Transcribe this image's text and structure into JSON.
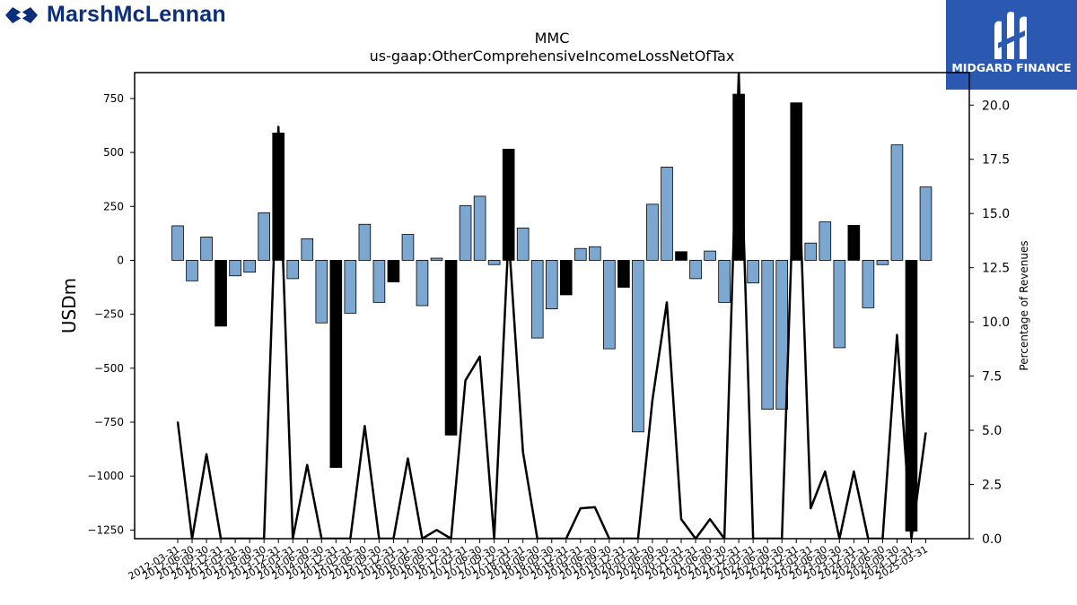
{
  "brand": {
    "left_logo_text": "MarshMcLennan",
    "right_logo_text": "MIDGARD FINANCE"
  },
  "chart_data": {
    "type": "bar",
    "title": "MMC",
    "subtitle": "us-gaap:OtherComprehensiveIncomeLossNetOfTax",
    "ylabel": "USDm",
    "y2label": "Percentage of Revenues",
    "ylim": [
      -1290,
      870
    ],
    "y2lim": [
      0,
      21.5
    ],
    "y_ticks": [
      -1250,
      -1000,
      -750,
      -500,
      -250,
      0,
      250,
      500,
      750
    ],
    "y_tick_labels": [
      "−1250",
      "−1000",
      "−750",
      "−500",
      "−250",
      "0",
      "250",
      "500",
      "750"
    ],
    "y2_ticks": [
      0,
      2.5,
      5,
      7.5,
      10,
      12.5,
      15,
      17.5,
      20
    ],
    "y2_tick_labels": [
      "0.0",
      "2.5",
      "5.0",
      "7.5",
      "10.0",
      "12.5",
      "15.0",
      "17.5",
      "20.0"
    ],
    "colors": {
      "quarter_bar": "#7ba7d0",
      "annual_bar": "#000000",
      "line": "#000000"
    },
    "categories": [
      "2012-03-31",
      "2012-06-30",
      "2012-09-30",
      "2012-12-31",
      "2013-03-31",
      "2013-06-30",
      "2013-09-30",
      "2013-12-31",
      "2014-03-31",
      "2014-06-30",
      "2014-09-30",
      "2014-12-31",
      "2015-03-31",
      "2015-06-30",
      "2015-09-30",
      "2015-12-31",
      "2016-03-31",
      "2016-06-30",
      "2016-09-30",
      "2016-12-31",
      "2017-03-31",
      "2017-06-30",
      "2017-09-30",
      "2017-12-31",
      "2018-03-31",
      "2018-06-30",
      "2018-09-30",
      "2018-12-31",
      "2019-03-31",
      "2019-06-30",
      "2019-09-30",
      "2019-12-31",
      "2020-03-31",
      "2020-06-30",
      "2020-09-30",
      "2020-12-31",
      "2021-03-31",
      "2021-06-30",
      "2021-09-30",
      "2021-12-31",
      "2022-03-31",
      "2022-06-30",
      "2022-09-30",
      "2022-12-31",
      "2023-03-31",
      "2023-06-30",
      "2023-09-30",
      "2023-12-31",
      "2024-03-31",
      "2024-06-30",
      "2024-09-30",
      "2024-12-31",
      "2025-03-31"
    ],
    "x_tick_labels": [
      "2012-03-31",
      "2012-06-30",
      "2012-09-30",
      "2012-12-31",
      "2013-03-31",
      "2013-06-30",
      "2013-09-30",
      "2013-12-31",
      "2014-03-31",
      "2014-06-30",
      "2014-09-30",
      "2014-12-31",
      "2015-03-31",
      "2015-06-30",
      "2015-09-30",
      "2015-12-31",
      "2016-03-31",
      "2016-06-30",
      "2016-09-30",
      "2016-12-31",
      "2017-03-31",
      "2017-06-30",
      "2017-09-30",
      "2017-12-31",
      "2018-03-31",
      "2018-06-30",
      "2018-09-30",
      "2018-12-31",
      "2019-03-31",
      "2019-06-30",
      "2019-09-30",
      "2019-12-31",
      "2020-03-31",
      "2020-06-30",
      "2020-09-30",
      "2020-12-31",
      "2021-03-31",
      "2021-06-30",
      "2021-09-30",
      "2021-12-31",
      "2022-03-31",
      "2022-06-30",
      "2022-09-30",
      "2022-12-31",
      "2023-03-31",
      "2023-06-30",
      "2023-09-30",
      "2023-12-31",
      "2024-03-31",
      "2024-06-30",
      "2024-09-30",
      "2024-12-31",
      "2025-03-31"
    ],
    "values": [
      160,
      -95,
      108,
      -305,
      -72,
      -55,
      220,
      590,
      -85,
      100,
      -290,
      -960,
      -245,
      167,
      -195,
      -100,
      120,
      -210,
      10,
      -810,
      253,
      297,
      -20,
      515,
      150,
      -360,
      -225,
      -160,
      55,
      63,
      -410,
      -125,
      -795,
      260,
      432,
      40,
      -85,
      43,
      -195,
      770,
      -105,
      -690,
      -690,
      730,
      80,
      178,
      -405,
      162,
      -220,
      -20,
      535,
      -1255,
      340
    ],
    "bar_type": [
      "q",
      "q",
      "q",
      "a",
      "q",
      "q",
      "q",
      "a",
      "q",
      "q",
      "q",
      "a",
      "q",
      "q",
      "q",
      "a",
      "q",
      "q",
      "q",
      "a",
      "q",
      "q",
      "q",
      "a",
      "q",
      "q",
      "q",
      "a",
      "q",
      "q",
      "q",
      "a",
      "q",
      "q",
      "q",
      "a",
      "q",
      "q",
      "q",
      "a",
      "q",
      "q",
      "q",
      "a",
      "q",
      "q",
      "q",
      "a",
      "q",
      "q",
      "q",
      "a",
      "q"
    ],
    "pct_of_revenues": [
      5.4,
      0,
      3.9,
      0,
      0,
      0,
      0,
      19.0,
      0,
      3.4,
      0,
      0,
      0,
      5.2,
      0,
      0,
      3.7,
      0,
      0.4,
      0,
      7.3,
      8.4,
      0,
      14.0,
      4.0,
      0,
      0,
      0,
      1.4,
      1.45,
      0,
      0,
      0,
      6.4,
      10.9,
      0.9,
      0,
      0.9,
      0,
      21.5,
      0,
      0,
      0,
      20.0,
      1.4,
      3.1,
      0,
      3.1,
      0,
      0,
      9.4,
      0,
      4.9
    ],
    "legend": "none",
    "grid": false
  }
}
